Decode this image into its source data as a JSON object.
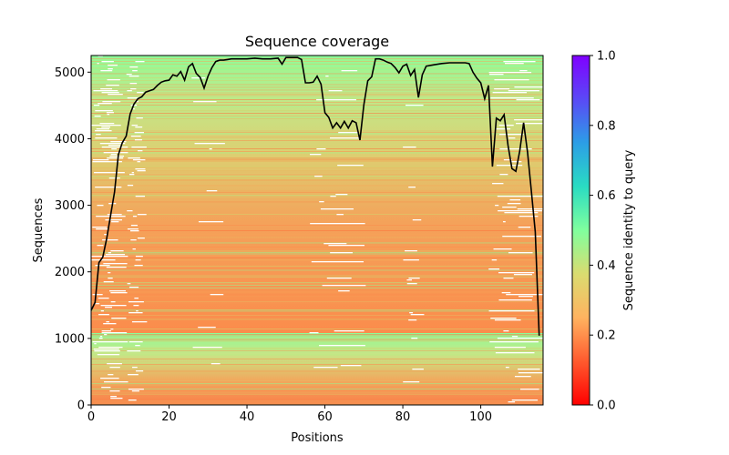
{
  "chart_data": {
    "type": "heatmap",
    "title": "Sequence coverage",
    "xlabel": "Positions",
    "ylabel": "Sequences",
    "xlim": [
      0,
      116
    ],
    "ylim": [
      0,
      5250
    ],
    "x_ticks": [
      0,
      20,
      40,
      60,
      80,
      100
    ],
    "y_ticks": [
      0,
      1000,
      2000,
      3000,
      4000,
      5000
    ],
    "x_tick_labels": [
      "0",
      "20",
      "40",
      "60",
      "80",
      "100"
    ],
    "y_tick_labels": [
      "0",
      "1000",
      "2000",
      "3000",
      "4000",
      "5000"
    ],
    "grid": false,
    "colormap": "rainbow_r",
    "colorbar": {
      "label": "Sequence identity to query",
      "range": [
        0.0,
        1.0
      ],
      "ticks": [
        0.0,
        0.2,
        0.4,
        0.6,
        0.8,
        1.0
      ],
      "tick_labels": [
        "0.0",
        "0.2",
        "0.4",
        "0.6",
        "0.8",
        "1.0"
      ]
    },
    "heatmap_rows": [
      {
        "y_start": 0,
        "y_end": 1080,
        "identity_start": 0.2,
        "identity_end": 0.55
      },
      {
        "y_start": 1080,
        "y_end": 5250,
        "identity_start": 0.2,
        "identity_end": 0.55
      }
    ],
    "coverage_line": {
      "name": "coverage",
      "color": "#000000",
      "x": [
        0,
        1,
        2,
        3,
        4,
        5,
        6,
        7,
        8,
        9,
        10,
        11,
        12,
        13,
        14,
        15,
        16,
        17,
        18,
        19,
        20,
        21,
        22,
        23,
        24,
        25,
        26,
        27,
        28,
        29,
        30,
        31,
        32,
        33,
        34,
        35,
        36,
        38,
        40,
        42,
        44,
        46,
        48,
        49,
        50,
        52,
        53,
        54,
        55,
        56,
        57,
        58,
        59,
        60,
        61,
        62,
        63,
        64,
        65,
        66,
        67,
        68,
        69,
        70,
        71,
        72,
        73,
        74,
        75,
        76,
        77,
        78,
        79,
        80,
        81,
        82,
        83,
        84,
        85,
        86,
        88,
        90,
        92,
        94,
        96,
        97,
        98,
        99,
        100,
        101,
        102,
        103,
        104,
        105,
        106,
        107,
        108,
        109,
        110,
        111,
        112,
        113,
        114,
        115
      ],
      "y": [
        1420,
        1540,
        2140,
        2220,
        2500,
        2850,
        3200,
        3760,
        3940,
        4040,
        4370,
        4520,
        4600,
        4630,
        4700,
        4720,
        4740,
        4800,
        4850,
        4870,
        4880,
        4960,
        4940,
        5010,
        4880,
        5080,
        5130,
        4980,
        4920,
        4760,
        4940,
        5070,
        5160,
        5180,
        5180,
        5190,
        5200,
        5200,
        5200,
        5210,
        5200,
        5200,
        5210,
        5120,
        5220,
        5220,
        5220,
        5190,
        4840,
        4840,
        4850,
        4940,
        4820,
        4390,
        4320,
        4160,
        4240,
        4160,
        4260,
        4160,
        4270,
        4240,
        3980,
        4510,
        4870,
        4930,
        5200,
        5200,
        5180,
        5150,
        5130,
        5070,
        4990,
        5090,
        5120,
        4950,
        5040,
        4620,
        4960,
        5090,
        5110,
        5130,
        5140,
        5140,
        5140,
        5130,
        5000,
        4910,
        4840,
        4600,
        4800,
        3580,
        4310,
        4270,
        4360,
        3900,
        3550,
        3510,
        3810,
        4240,
        3800,
        3200,
        2600,
        1040
      ]
    }
  }
}
